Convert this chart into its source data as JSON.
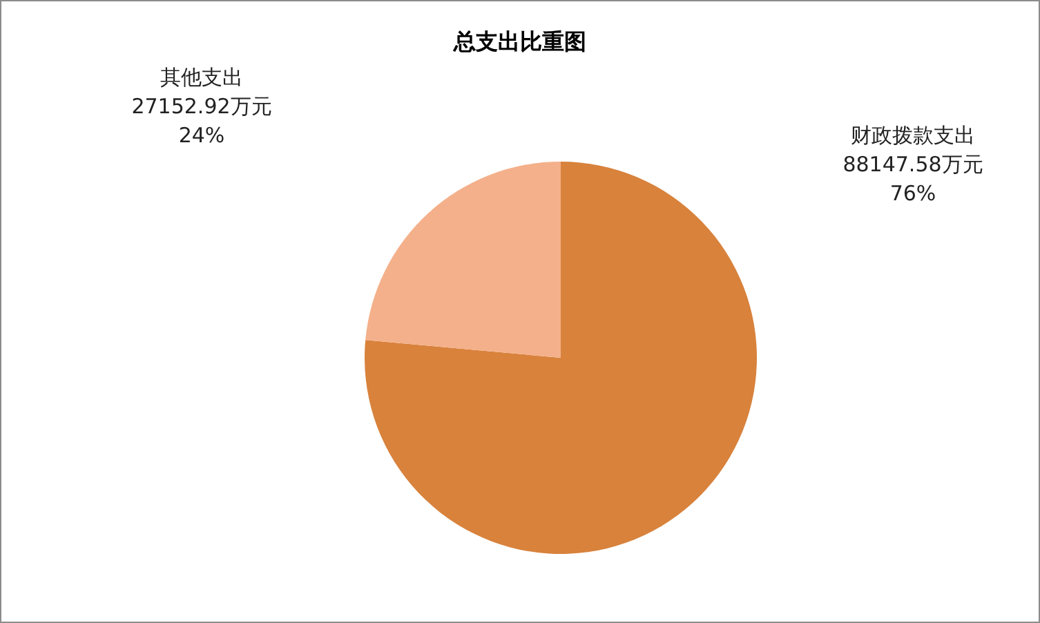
{
  "chart_data": {
    "type": "pie",
    "title": "总支出比重图",
    "categories": [
      "财政拨款支出",
      "其他支出"
    ],
    "values": [
      88147.58,
      27152.92
    ],
    "colors": [
      "#d8823c",
      "#f4b08a"
    ],
    "value_labels": [
      "88147.58万元\n76%",
      "27152.92万元\n24%"
    ],
    "legend": false
  }
}
